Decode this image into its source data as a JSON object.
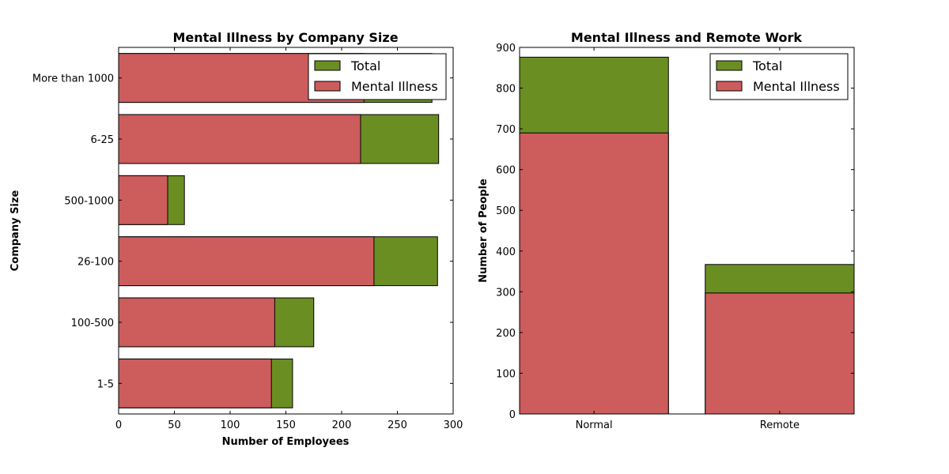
{
  "chart_data": [
    {
      "type": "bar",
      "orientation": "horizontal",
      "stacking": "overlay",
      "title": "Mental Illness by Company Size",
      "xlabel": "Number of Employees",
      "ylabel": "Company Size",
      "xlim": [
        0,
        300
      ],
      "xticks": [
        "0",
        "50",
        "100",
        "150",
        "200",
        "250",
        "300"
      ],
      "categories": [
        "1-5",
        "100-500",
        "26-100",
        "500-1000",
        "6-25",
        "More than 1000"
      ],
      "series": [
        {
          "name": "Total",
          "color": "#6b8e23",
          "values": [
            156,
            175,
            286,
            59,
            287,
            281
          ]
        },
        {
          "name": "Mental Illness",
          "color": "#cd5c5c",
          "values": [
            137,
            140,
            229,
            44,
            217,
            220
          ]
        }
      ],
      "grid": false,
      "legend": "top-right"
    },
    {
      "type": "bar",
      "orientation": "vertical",
      "stacking": "overlay",
      "title": "Mental Illness and Remote Work",
      "xlabel": "",
      "ylabel": "Number of People",
      "ylim": [
        0,
        900
      ],
      "yticks": [
        "0",
        "100",
        "200",
        "300",
        "400",
        "500",
        "600",
        "700",
        "800",
        "900"
      ],
      "categories": [
        "Normal",
        "Remote"
      ],
      "series": [
        {
          "name": "Total",
          "color": "#6b8e23",
          "values": [
            876,
            367
          ]
        },
        {
          "name": "Mental Illness",
          "color": "#cd5c5c",
          "values": [
            690,
            297
          ]
        }
      ],
      "grid": false,
      "legend": "top-right"
    }
  ]
}
